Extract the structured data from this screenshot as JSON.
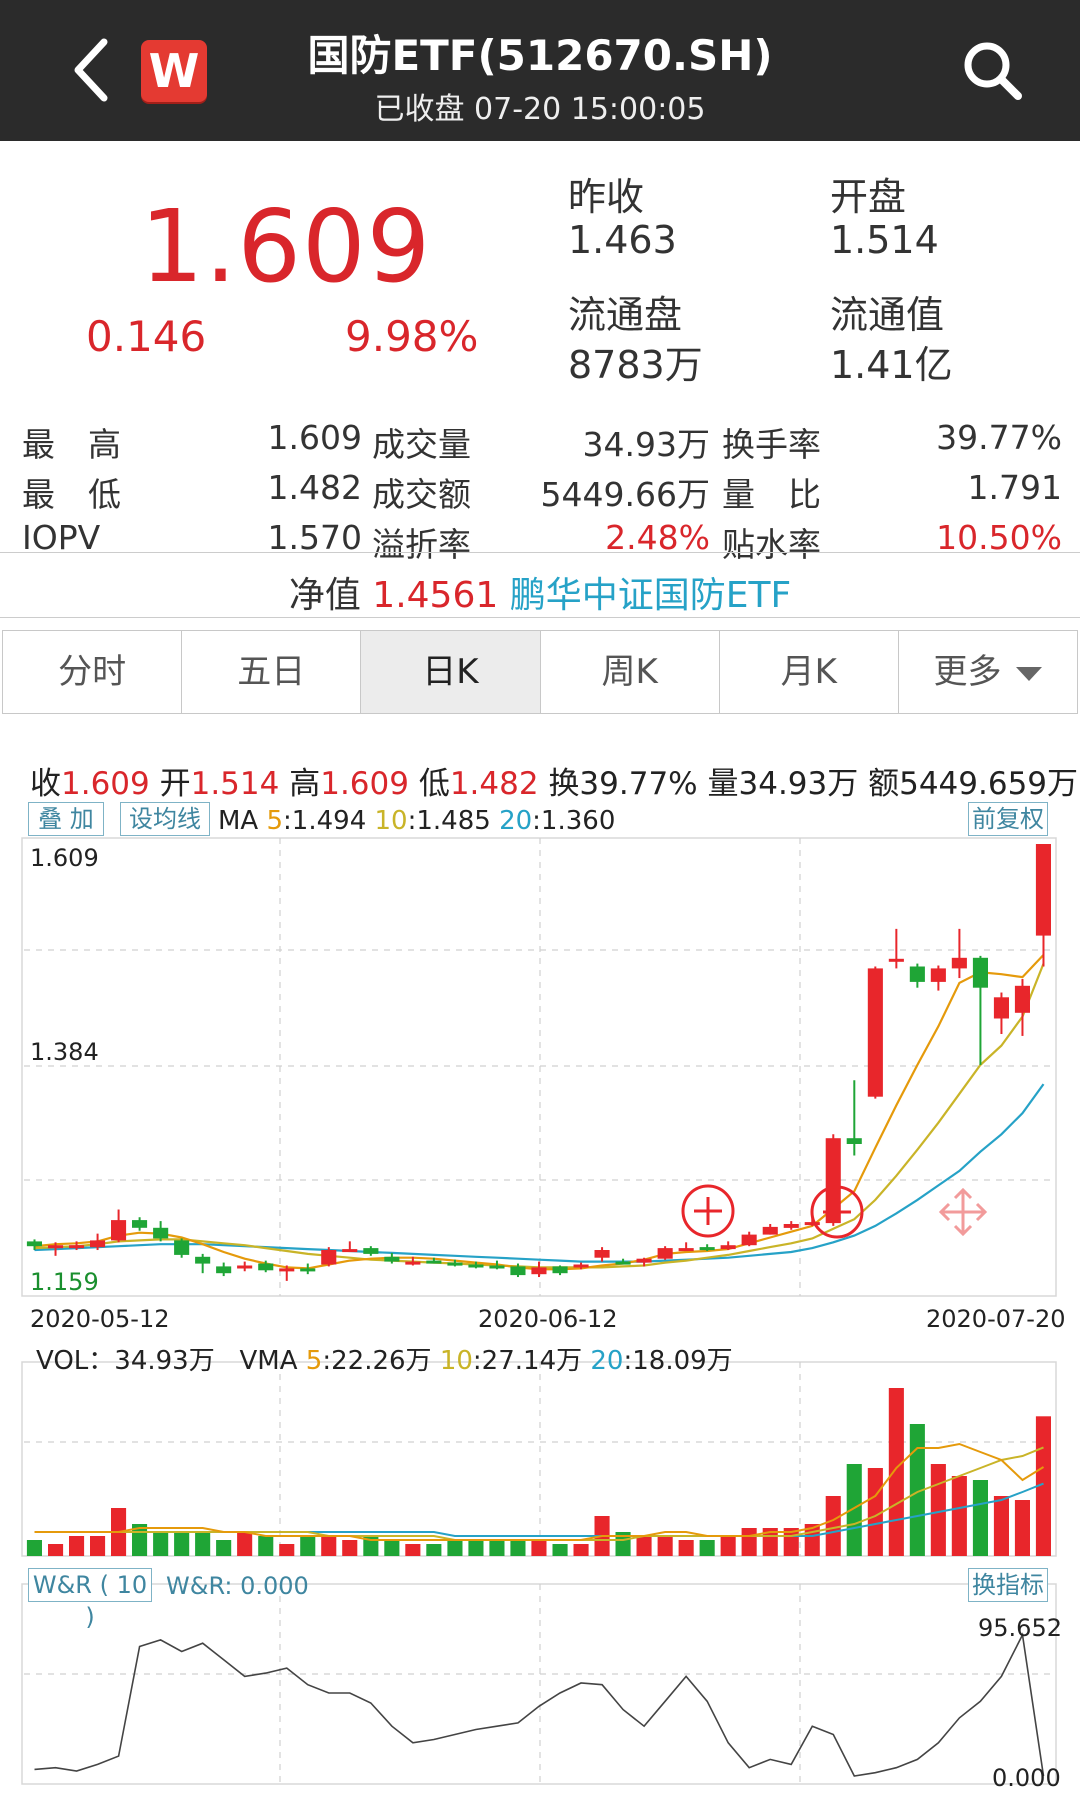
{
  "header": {
    "title": "国防ETF(512670.SH)",
    "subtitle": "已收盘 07-20 15:00:05",
    "logo_letter": "W"
  },
  "summary": {
    "price": "1.609",
    "change": "0.146",
    "change_pct": "9.98%",
    "prev_close_label": "昨收",
    "prev_close": "1.463",
    "open_label": "开盘",
    "open": "1.514",
    "float_shares_label": "流通盘",
    "float_shares": "8783万",
    "float_value_label": "流通值",
    "float_value": "1.41亿"
  },
  "stats": [
    {
      "label": "最　高",
      "value": "1.609",
      "label2": "成交量",
      "value2": "34.93万",
      "label3": "换手率",
      "value3": "39.77%"
    },
    {
      "label": "最　低",
      "value": "1.482",
      "label2": "成交额",
      "value2": "5449.66万",
      "label3": "量　比",
      "value3": "1.791"
    },
    {
      "label": "IOPV",
      "value": "1.570",
      "label2": "溢折率",
      "value2": "2.48%",
      "label3": "贴水率",
      "value3": "10.50%"
    }
  ],
  "nav": {
    "label": "净值",
    "value": "1.4561",
    "fund_name": "鹏华中证国防ETF"
  },
  "tabs": [
    {
      "label": "分时",
      "active": false
    },
    {
      "label": "五日",
      "active": false
    },
    {
      "label": "日K",
      "active": true
    },
    {
      "label": "周K",
      "active": false
    },
    {
      "label": "月K",
      "active": false
    },
    {
      "label": "更多",
      "active": false
    }
  ],
  "quote": {
    "close_label": "收",
    "close": "1.609",
    "open_label": "开",
    "open": "1.514",
    "high_label": "高",
    "high": "1.609",
    "low_label": "低",
    "low": "1.482",
    "turnover": "换39.77%",
    "volume": "量34.93万",
    "amount": "额5449.659万"
  },
  "buttons": {
    "overlay": "叠 加",
    "set_ma": "设均线",
    "adjust": "前复权",
    "switch_indicator": "换指标"
  },
  "ma": {
    "label": "MA",
    "ma5_key": "5",
    "ma5": "1.494",
    "ma10_key": "10",
    "ma10": "1.485",
    "ma20_key": "20",
    "ma20": "1.360"
  },
  "vol": {
    "label": "VOL：",
    "value": "34.93万",
    "vma_label": "VMA",
    "vma5_key": "5",
    "vma5": "22.26万",
    "vma10_key": "10",
    "vma10": "27.14万",
    "vma20_key": "20",
    "vma20": "18.09万"
  },
  "wr": {
    "button": "W&R ( 10 )",
    "value": "W&R: 0.000",
    "max": "95.652",
    "min": "0.000"
  },
  "colors": {
    "up": "#e8262b",
    "down": "#1fa536",
    "ma5": "#e59a0b",
    "ma10": "#c9b428",
    "ma20": "#26a2c7"
  },
  "chart_data": {
    "type": "candlestick",
    "x_labels": [
      "2020-05-12",
      "2020-06-12",
      "2020-07-20"
    ],
    "y_labels": [
      "1.609",
      "1.384",
      "1.159"
    ],
    "ylim": [
      1.159,
      1.609
    ],
    "candles": [
      {
        "o": 1.197,
        "c": 1.192,
        "h": 1.199,
        "l": 1.188
      },
      {
        "o": 1.192,
        "c": 1.193,
        "h": 1.196,
        "l": 1.182
      },
      {
        "o": 1.192,
        "c": 1.193,
        "h": 1.197,
        "l": 1.188
      },
      {
        "o": 1.191,
        "c": 1.198,
        "h": 1.205,
        "l": 1.188
      },
      {
        "o": 1.198,
        "c": 1.219,
        "h": 1.23,
        "l": 1.196
      },
      {
        "o": 1.219,
        "c": 1.211,
        "h": 1.222,
        "l": 1.208
      },
      {
        "o": 1.211,
        "c": 1.2,
        "h": 1.218,
        "l": 1.197
      },
      {
        "o": 1.198,
        "c": 1.183,
        "h": 1.2,
        "l": 1.18
      },
      {
        "o": 1.181,
        "c": 1.174,
        "h": 1.184,
        "l": 1.164
      },
      {
        "o": 1.171,
        "c": 1.164,
        "h": 1.175,
        "l": 1.161
      },
      {
        "o": 1.169,
        "c": 1.172,
        "h": 1.176,
        "l": 1.166
      },
      {
        "o": 1.174,
        "c": 1.167,
        "h": 1.177,
        "l": 1.165
      },
      {
        "o": 1.166,
        "c": 1.169,
        "h": 1.172,
        "l": 1.156
      },
      {
        "o": 1.169,
        "c": 1.168,
        "h": 1.174,
        "l": 1.163
      },
      {
        "o": 1.173,
        "c": 1.188,
        "h": 1.191,
        "l": 1.171
      },
      {
        "o": 1.188,
        "c": 1.189,
        "h": 1.197,
        "l": 1.186
      },
      {
        "o": 1.19,
        "c": 1.184,
        "h": 1.192,
        "l": 1.182
      },
      {
        "o": 1.181,
        "c": 1.176,
        "h": 1.185,
        "l": 1.174
      },
      {
        "o": 1.175,
        "c": 1.176,
        "h": 1.181,
        "l": 1.172
      },
      {
        "o": 1.177,
        "c": 1.176,
        "h": 1.18,
        "l": 1.174
      },
      {
        "o": 1.175,
        "c": 1.173,
        "h": 1.178,
        "l": 1.171
      },
      {
        "o": 1.173,
        "c": 1.171,
        "h": 1.176,
        "l": 1.169
      },
      {
        "o": 1.172,
        "c": 1.17,
        "h": 1.177,
        "l": 1.168
      },
      {
        "o": 1.171,
        "c": 1.162,
        "h": 1.174,
        "l": 1.16
      },
      {
        "o": 1.163,
        "c": 1.17,
        "h": 1.176,
        "l": 1.16
      },
      {
        "o": 1.171,
        "c": 1.164,
        "h": 1.172,
        "l": 1.162
      },
      {
        "o": 1.17,
        "c": 1.173,
        "h": 1.175,
        "l": 1.168
      },
      {
        "o": 1.18,
        "c": 1.188,
        "h": 1.191,
        "l": 1.176
      },
      {
        "o": 1.176,
        "c": 1.175,
        "h": 1.179,
        "l": 1.173
      },
      {
        "o": 1.175,
        "c": 1.179,
        "h": 1.18,
        "l": 1.171
      },
      {
        "o": 1.179,
        "c": 1.19,
        "h": 1.192,
        "l": 1.178
      },
      {
        "o": 1.19,
        "c": 1.19,
        "h": 1.196,
        "l": 1.188
      },
      {
        "o": 1.191,
        "c": 1.189,
        "h": 1.194,
        "l": 1.187
      },
      {
        "o": 1.189,
        "c": 1.193,
        "h": 1.197,
        "l": 1.188
      },
      {
        "o": 1.193,
        "c": 1.204,
        "h": 1.207,
        "l": 1.192
      },
      {
        "o": 1.204,
        "c": 1.212,
        "h": 1.215,
        "l": 1.204
      },
      {
        "o": 1.211,
        "c": 1.215,
        "h": 1.218,
        "l": 1.209
      },
      {
        "o": 1.215,
        "c": 1.217,
        "h": 1.221,
        "l": 1.213
      },
      {
        "o": 1.216,
        "c": 1.304,
        "h": 1.308,
        "l": 1.213
      },
      {
        "o": 1.304,
        "c": 1.298,
        "h": 1.364,
        "l": 1.286
      },
      {
        "o": 1.347,
        "c": 1.48,
        "h": 1.482,
        "l": 1.345
      },
      {
        "o": 1.49,
        "c": 1.49,
        "h": 1.521,
        "l": 1.48
      },
      {
        "o": 1.482,
        "c": 1.466,
        "h": 1.485,
        "l": 1.46
      },
      {
        "o": 1.466,
        "c": 1.48,
        "h": 1.483,
        "l": 1.457
      },
      {
        "o": 1.48,
        "c": 1.491,
        "h": 1.521,
        "l": 1.47
      },
      {
        "o": 1.491,
        "c": 1.46,
        "h": 1.493,
        "l": 1.38
      },
      {
        "o": 1.428,
        "c": 1.45,
        "h": 1.455,
        "l": 1.412
      },
      {
        "o": 1.434,
        "c": 1.462,
        "h": 1.469,
        "l": 1.41
      },
      {
        "o": 1.514,
        "c": 1.609,
        "h": 1.609,
        "l": 1.482
      }
    ],
    "ma5": [
      1.192,
      1.194,
      1.195,
      1.197,
      1.203,
      1.206,
      1.205,
      1.201,
      1.194,
      1.186,
      1.179,
      1.174,
      1.17,
      1.169,
      1.173,
      1.177,
      1.179,
      1.18,
      1.18,
      1.179,
      1.177,
      1.175,
      1.173,
      1.17,
      1.168,
      1.168,
      1.169,
      1.172,
      1.174,
      1.178,
      1.184,
      1.186,
      1.187,
      1.189,
      1.195,
      1.201,
      1.207,
      1.213,
      1.231,
      1.249,
      1.294,
      1.338,
      1.38,
      1.42,
      1.465,
      1.476,
      1.474,
      1.471,
      1.494
    ],
    "ma10": [
      1.19,
      1.191,
      1.192,
      1.194,
      1.197,
      1.198,
      1.199,
      1.199,
      1.197,
      1.195,
      1.193,
      1.19,
      1.187,
      1.184,
      1.182,
      1.18,
      1.178,
      1.177,
      1.176,
      1.175,
      1.174,
      1.173,
      1.172,
      1.171,
      1.17,
      1.17,
      1.17,
      1.17,
      1.171,
      1.172,
      1.175,
      1.177,
      1.18,
      1.183,
      1.187,
      1.191,
      1.195,
      1.2,
      1.21,
      1.22,
      1.24,
      1.265,
      1.292,
      1.32,
      1.35,
      1.38,
      1.4,
      1.43,
      1.485
    ],
    "ma20": [
      1.188,
      1.189,
      1.19,
      1.191,
      1.192,
      1.193,
      1.194,
      1.194,
      1.194,
      1.193,
      1.192,
      1.191,
      1.19,
      1.189,
      1.188,
      1.187,
      1.186,
      1.185,
      1.184,
      1.183,
      1.182,
      1.181,
      1.18,
      1.179,
      1.178,
      1.177,
      1.176,
      1.176,
      1.176,
      1.176,
      1.177,
      1.178,
      1.179,
      1.18,
      1.182,
      1.184,
      1.186,
      1.19,
      1.196,
      1.203,
      1.213,
      1.226,
      1.24,
      1.255,
      1.27,
      1.29,
      1.308,
      1.33,
      1.36
    ],
    "volume": [
      4,
      3,
      5,
      5,
      12,
      8,
      6,
      6,
      6,
      4,
      6,
      5,
      3,
      5,
      5,
      4,
      5,
      4,
      3,
      3,
      4,
      4,
      4,
      4,
      4,
      3,
      3,
      10,
      6,
      5,
      5,
      4,
      4,
      5,
      7,
      7,
      7,
      8,
      15,
      23,
      22,
      42,
      33,
      23,
      20,
      19,
      15,
      14,
      34.93
    ],
    "vma": {
      "vma5": [
        6,
        6,
        6,
        6,
        6,
        7,
        7,
        7,
        7,
        6,
        6,
        5,
        5,
        5,
        5,
        5,
        4,
        4,
        4,
        4,
        4,
        4,
        4,
        4,
        4,
        4,
        4,
        5,
        5,
        5,
        6,
        6,
        5,
        5,
        5,
        6,
        6,
        7,
        9,
        12,
        15,
        22,
        27,
        27,
        28,
        26,
        24,
        19,
        22.26
      ],
      "vma10": [
        6,
        6,
        6,
        6,
        6,
        6,
        6,
        6,
        6,
        6,
        6,
        6,
        6,
        6,
        5,
        5,
        5,
        5,
        5,
        5,
        4,
        4,
        4,
        4,
        4,
        4,
        4,
        4,
        4,
        5,
        5,
        5,
        5,
        5,
        5,
        5,
        5,
        6,
        7,
        8,
        10,
        13,
        16,
        18,
        20,
        22,
        24,
        25,
        27.14
      ],
      "vma20": [
        6,
        6,
        6,
        6,
        6,
        6,
        6,
        6,
        6,
        6,
        6,
        6,
        6,
        6,
        6,
        6,
        6,
        6,
        6,
        6,
        5,
        5,
        5,
        5,
        5,
        5,
        5,
        5,
        5,
        5,
        5,
        5,
        5,
        5,
        5,
        5,
        5,
        5,
        6,
        7,
        8,
        9,
        10,
        11,
        12,
        13,
        14,
        16,
        18.09
      ]
    },
    "wr": [
      4,
      5,
      3,
      7,
      12,
      78,
      82,
      75,
      80,
      70,
      60,
      62,
      65,
      55,
      50,
      50,
      44,
      30,
      20,
      22,
      25,
      28,
      30,
      32,
      42,
      50,
      56,
      55,
      40,
      30,
      45,
      60,
      45,
      20,
      5,
      10,
      7,
      30,
      25,
      0,
      2,
      5,
      10,
      20,
      35,
      45,
      60,
      85,
      0
    ]
  }
}
